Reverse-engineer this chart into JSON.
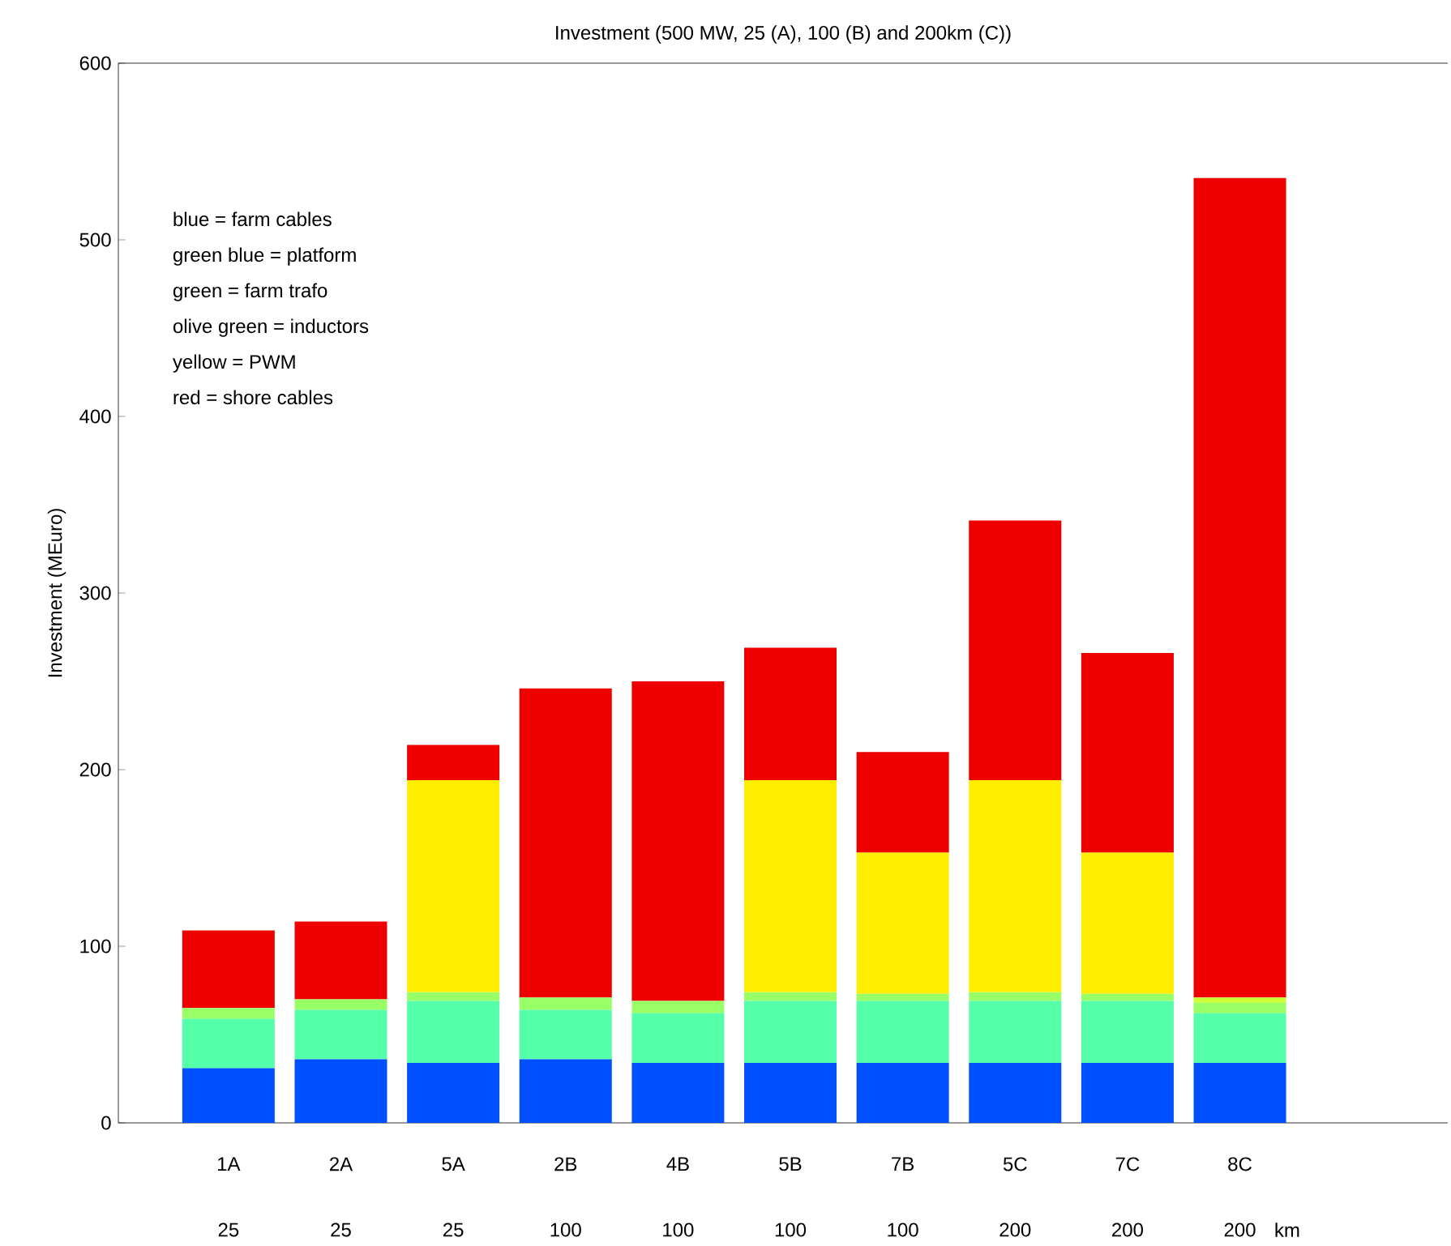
{
  "chart_data": {
    "type": "bar",
    "stacked": true,
    "title": "Investment (500 MW, 25 (A), 100 (B) and 200km (C))",
    "ylabel": "Investment (MEuro)",
    "xlabel": "km",
    "categories": [
      "1A",
      "2A",
      "5A",
      "2B",
      "4B",
      "5B",
      "7B",
      "5C",
      "7C",
      "8C"
    ],
    "series": [
      {
        "color": "#0050ff",
        "values": [
          31,
          36,
          34,
          36,
          34,
          34,
          34,
          34,
          34,
          34
        ]
      },
      {
        "color": "#55ffaa",
        "values": [
          28,
          28,
          35,
          28,
          28,
          35,
          35,
          35,
          35,
          28
        ]
      },
      {
        "color": "#99ff66",
        "values": [
          6,
          6,
          5,
          7,
          7,
          5,
          4,
          5,
          4,
          6
        ]
      },
      {
        "color": "#ccff33",
        "values": [
          0,
          0,
          0,
          0,
          0,
          0,
          0,
          0,
          0,
          3
        ]
      },
      {
        "color": "#ffee00",
        "values": [
          0,
          0,
          120,
          0,
          0,
          120,
          80,
          120,
          80,
          0
        ]
      },
      {
        "color": "#ee0000",
        "values": [
          44,
          44,
          20,
          175,
          181,
          75,
          57,
          147,
          113,
          464
        ]
      }
    ],
    "ylim": [
      0,
      600
    ],
    "yticks": [
      0,
      100,
      200,
      300,
      400,
      500,
      600
    ],
    "annotations": [
      "blue = farm cables",
      "green blue = platform",
      "green = farm trafo",
      "olive green = inductors",
      "yellow = PWM",
      "red = shore cables",
      "25",
      "25",
      "25",
      "100",
      "100",
      "100",
      "100",
      "200",
      "200",
      "200"
    ]
  }
}
